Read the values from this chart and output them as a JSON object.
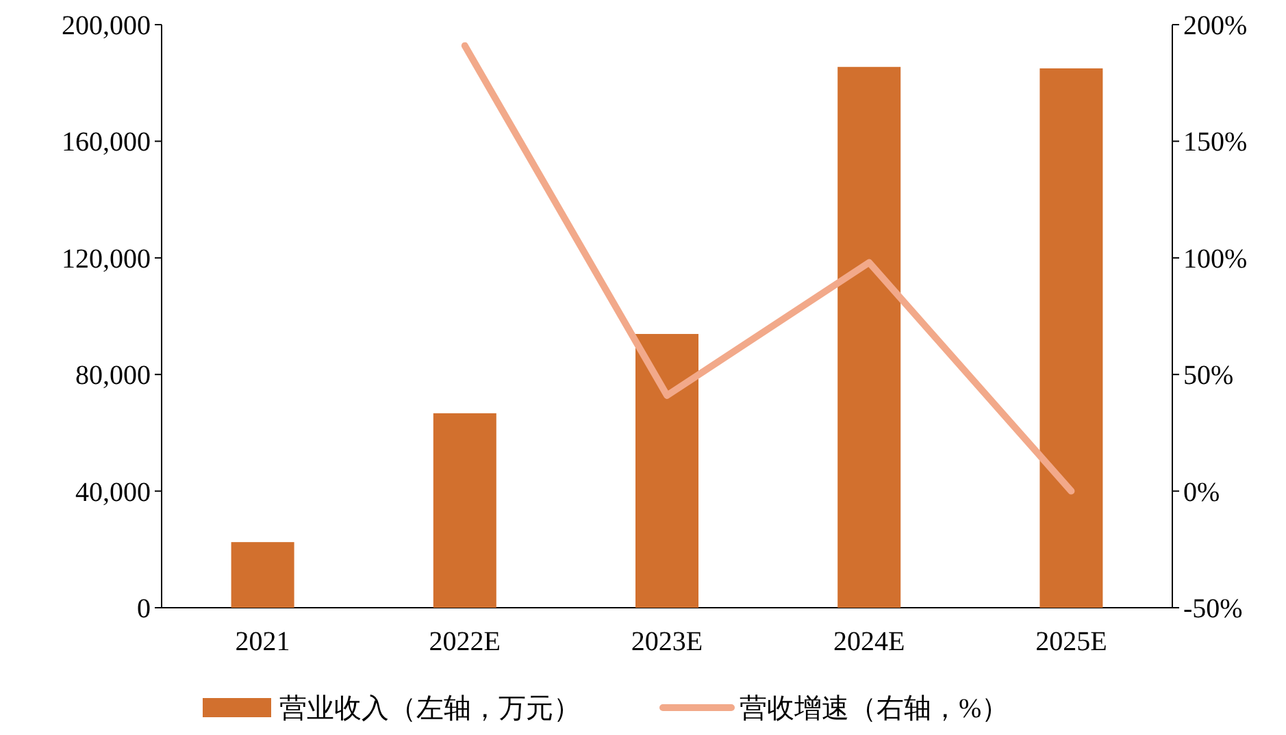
{
  "chart_data": {
    "type": "bar",
    "categories": [
      "2021",
      "2022E",
      "2023E",
      "2024E",
      "2025E"
    ],
    "series": [
      {
        "name": "营业收入（左轴，万元）",
        "color": "#d2702e",
        "values": [
          22500,
          66700,
          93900,
          185500,
          185000
        ]
      },
      {
        "name": "营收增速（右轴，%）",
        "type": "line",
        "axis": "y2",
        "color": "#f2a98a",
        "values": [
          null,
          191,
          41,
          98,
          0
        ]
      }
    ],
    "ylim": [
      0,
      200000
    ],
    "yticks": [
      0,
      {
        "value": 40000,
        "label": "40,000"
      },
      {
        "value": 80000,
        "label": "80,000"
      },
      {
        "value": 120000,
        "label": "120,000"
      },
      {
        "value": 160000,
        "label": "160,000"
      },
      {
        "value": 200000,
        "label": "200,000"
      }
    ],
    "y2lim": [
      -50,
      200
    ],
    "y2ticks": [
      {
        "value": -50,
        "label": "-50%"
      },
      {
        "value": 0,
        "label": "0%"
      },
      {
        "value": 50,
        "label": "50%"
      },
      {
        "value": 100,
        "label": "100%"
      },
      {
        "value": 150,
        "label": "150%"
      },
      {
        "value": 200,
        "label": "200%"
      }
    ],
    "legend": "bottom"
  }
}
